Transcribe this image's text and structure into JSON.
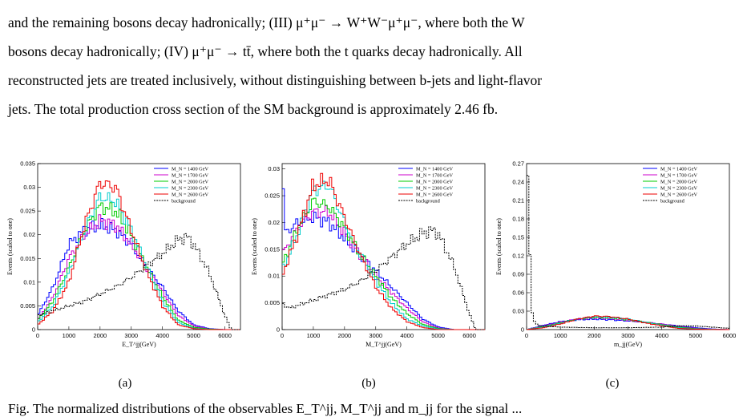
{
  "paragraph": {
    "lines": [
      "and the remaining bosons decay hadronically; (III) μ⁺μ⁻ → W⁺W⁻μ⁺μ⁻, where both the W",
      "bosons decay hadronically; (IV) μ⁺μ⁻ → tt̄, where both the t quarks decay hadronically. All",
      "reconstructed jets are treated inclusively, without distinguishing between b-jets and light-flavor",
      "jets. The total production cross section of the SM background is approximately 2.46 fb."
    ]
  },
  "figures": [
    {
      "id": "a",
      "caption": "(a)",
      "chart_data": {
        "type": "line",
        "xlabel": "E_T^jj(GeV)",
        "ylabel": "Events (scaled to one)",
        "xlim": [
          0,
          6500
        ],
        "ylim": [
          0,
          0.035
        ],
        "xticks": [
          "0",
          "1000",
          "2000",
          "3000",
          "4000",
          "5000",
          "6000"
        ],
        "yticks": [
          "0",
          "0.005",
          "0.01",
          "0.015",
          "0.02",
          "0.025",
          "0.03",
          "0.035"
        ],
        "legend_position": "top-right",
        "series": [
          {
            "name": "M_N = 1400 GeV",
            "color": "#0000ff",
            "x": [
              0,
              500,
              1000,
              1500,
              2000,
              2500,
              3000,
              3500,
              4000,
              4500,
              5000,
              5500,
              6000
            ],
            "values": [
              0.003,
              0.009,
              0.018,
              0.021,
              0.022,
              0.021,
              0.018,
              0.013,
              0.009,
              0.004,
              0.001,
              0.0002,
              0
            ]
          },
          {
            "name": "M_N = 1700 GeV",
            "color": "#cc00cc",
            "x": [
              0,
              500,
              1000,
              1500,
              2000,
              2500,
              3000,
              3500,
              4000,
              4500,
              5000,
              5500,
              6000
            ],
            "values": [
              0.002,
              0.007,
              0.015,
              0.02,
              0.023,
              0.022,
              0.018,
              0.013,
              0.008,
              0.003,
              0.0008,
              0.0001,
              0
            ]
          },
          {
            "name": "M_N = 2000 GeV",
            "color": "#00cc00",
            "x": [
              0,
              500,
              1000,
              1500,
              2000,
              2500,
              3000,
              3500,
              4000,
              4500,
              5000,
              5500,
              6000
            ],
            "values": [
              0.002,
              0.006,
              0.013,
              0.021,
              0.026,
              0.025,
              0.02,
              0.013,
              0.007,
              0.002,
              0.0005,
              0.0001,
              0
            ]
          },
          {
            "name": "M_N = 2300 GeV",
            "color": "#00cccc",
            "x": [
              0,
              500,
              1000,
              1500,
              2000,
              2500,
              3000,
              3500,
              4000,
              4500,
              5000,
              5500,
              6000
            ],
            "values": [
              0.0015,
              0.005,
              0.012,
              0.021,
              0.028,
              0.027,
              0.021,
              0.013,
              0.006,
              0.0015,
              0.0003,
              0,
              0
            ]
          },
          {
            "name": "M_N = 2600 GeV",
            "color": "#ee0000",
            "x": [
              0,
              500,
              1000,
              1500,
              2000,
              2500,
              3000,
              3500,
              4000,
              4500,
              5000,
              5500,
              6000
            ],
            "values": [
              0.001,
              0.004,
              0.01,
              0.022,
              0.031,
              0.03,
              0.021,
              0.012,
              0.005,
              0.001,
              0.0002,
              0,
              0
            ]
          },
          {
            "name": "background",
            "color": "#000000",
            "dashed": true,
            "x": [
              0,
              500,
              1000,
              1500,
              2000,
              2500,
              3000,
              3500,
              4000,
              4500,
              4800,
              5000,
              5500,
              6000,
              6200
            ],
            "values": [
              0.003,
              0.004,
              0.005,
              0.006,
              0.0075,
              0.009,
              0.011,
              0.0135,
              0.016,
              0.019,
              0.0195,
              0.018,
              0.012,
              0.003,
              0
            ]
          }
        ]
      }
    },
    {
      "id": "b",
      "caption": "(b)",
      "chart_data": {
        "type": "line",
        "xlabel": "M_T^jj(GeV)",
        "ylabel": "Events (scaled to one)",
        "xlim": [
          0,
          6500
        ],
        "ylim": [
          0,
          0.031
        ],
        "xticks": [
          "0",
          "1000",
          "2000",
          "3000",
          "4000",
          "5000",
          "6000"
        ],
        "yticks": [
          "0",
          "0.005",
          "0.01",
          "0.015",
          "0.02",
          "0.025",
          "0.03"
        ],
        "legend_position": "top-right",
        "series": [
          {
            "name": "M_N = 1400 GeV",
            "color": "#0000ff",
            "x": [
              0,
              100,
              500,
              1000,
              1500,
              2000,
              2500,
              3000,
              3500,
              4000,
              4500,
              5000,
              5500
            ],
            "values": [
              0.031,
              0.018,
              0.02,
              0.021,
              0.02,
              0.017,
              0.014,
              0.011,
              0.008,
              0.005,
              0.002,
              0.0005,
              0
            ]
          },
          {
            "name": "M_N = 1700 GeV",
            "color": "#cc00cc",
            "x": [
              0,
              500,
              1000,
              1500,
              2000,
              2500,
              3000,
              3500,
              4000,
              4500,
              5000,
              5500
            ],
            "values": [
              0.014,
              0.019,
              0.022,
              0.022,
              0.018,
              0.014,
              0.01,
              0.007,
              0.004,
              0.0015,
              0.0003,
              0
            ]
          },
          {
            "name": "M_N = 2000 GeV",
            "color": "#00cc00",
            "x": [
              0,
              500,
              1000,
              1500,
              2000,
              2500,
              3000,
              3500,
              4000,
              4500,
              5000,
              5500
            ],
            "values": [
              0.012,
              0.019,
              0.024,
              0.023,
              0.019,
              0.014,
              0.01,
              0.006,
              0.003,
              0.001,
              0.0002,
              0
            ]
          },
          {
            "name": "M_N = 2300 GeV",
            "color": "#00cccc",
            "x": [
              0,
              500,
              1000,
              1500,
              2000,
              2500,
              3000,
              3500,
              4000,
              4500,
              5000,
              5500
            ],
            "values": [
              0.011,
              0.018,
              0.026,
              0.027,
              0.02,
              0.014,
              0.009,
              0.005,
              0.002,
              0.0007,
              0.0001,
              0
            ]
          },
          {
            "name": "M_N = 2600 GeV",
            "color": "#ee0000",
            "x": [
              0,
              500,
              1000,
              1500,
              2000,
              2500,
              3000,
              3500,
              4000,
              4500,
              5000
            ],
            "values": [
              0.01,
              0.018,
              0.027,
              0.028,
              0.021,
              0.014,
              0.008,
              0.004,
              0.0015,
              0.0004,
              0
            ]
          },
          {
            "name": "background",
            "color": "#000000",
            "dashed": true,
            "x": [
              0,
              200,
              500,
              1000,
              1500,
              2000,
              2500,
              3000,
              3500,
              4000,
              4500,
              4800,
              5000,
              5500,
              6000,
              6200
            ],
            "values": [
              0.005,
              0.004,
              0.0045,
              0.0055,
              0.0065,
              0.0075,
              0.009,
              0.011,
              0.0135,
              0.016,
              0.018,
              0.0185,
              0.018,
              0.012,
              0.003,
              0
            ]
          }
        ]
      }
    },
    {
      "id": "c",
      "caption": "(c)",
      "chart_data": {
        "type": "line",
        "xlabel": "m_jj(GeV)",
        "ylabel": "Events (scaled to one)",
        "xlim": [
          0,
          6000
        ],
        "ylim": [
          0,
          0.27
        ],
        "xticks": [
          "0",
          "1000",
          "2000",
          "3000",
          "4000",
          "5000",
          "6000"
        ],
        "yticks": [
          "0",
          "0.03",
          "0.06",
          "0.09",
          "0.12",
          "0.15",
          "0.18",
          "0.21",
          "0.24",
          "0.27"
        ],
        "legend_position": "top-right",
        "series": [
          {
            "name": "M_N = 1400 GeV",
            "color": "#0000ff",
            "x": [
              0,
              500,
              1000,
              1500,
              2000,
              2500,
              3000,
              3500,
              4000,
              4500,
              5000,
              5500,
              6000
            ],
            "values": [
              0,
              0.007,
              0.013,
              0.016,
              0.017,
              0.016,
              0.014,
              0.012,
              0.009,
              0.006,
              0.003,
              0.001,
              0
            ]
          },
          {
            "name": "M_N = 1700 GeV",
            "color": "#cc00cc",
            "x": [
              0,
              500,
              1000,
              1500,
              2000,
              2500,
              3000,
              3500,
              4000,
              4500,
              5000,
              5500,
              6000
            ],
            "values": [
              0,
              0.006,
              0.012,
              0.017,
              0.019,
              0.018,
              0.015,
              0.012,
              0.009,
              0.005,
              0.002,
              0.0005,
              0
            ]
          },
          {
            "name": "M_N = 2000 GeV",
            "color": "#00cc00",
            "x": [
              0,
              500,
              1000,
              1500,
              2000,
              2500,
              3000,
              3500,
              4000,
              4500,
              5000,
              5500,
              6000
            ],
            "values": [
              0,
              0.005,
              0.011,
              0.017,
              0.02,
              0.019,
              0.016,
              0.012,
              0.008,
              0.004,
              0.0015,
              0.0003,
              0
            ]
          },
          {
            "name": "M_N = 2300 GeV",
            "color": "#00cccc",
            "x": [
              0,
              500,
              1000,
              1500,
              2000,
              2500,
              3000,
              3500,
              4000,
              4500,
              5000,
              5500,
              6000
            ],
            "values": [
              0,
              0.004,
              0.01,
              0.017,
              0.021,
              0.02,
              0.017,
              0.012,
              0.007,
              0.003,
              0.001,
              0.0002,
              0
            ]
          },
          {
            "name": "M_N = 2600 GeV",
            "color": "#ee0000",
            "x": [
              0,
              500,
              1000,
              1500,
              2000,
              2500,
              3000,
              3500,
              4000,
              4500,
              5000,
              5500,
              6000
            ],
            "values": [
              0,
              0.003,
              0.009,
              0.017,
              0.022,
              0.021,
              0.017,
              0.011,
              0.006,
              0.002,
              0.0007,
              0.0001,
              0
            ]
          },
          {
            "name": "background",
            "color": "#000000",
            "dashed": true,
            "x": [
              0,
              50,
              100,
              150,
              250,
              400,
              700,
              1000,
              2000,
              3000,
              4000,
              4500,
              5000,
              5500,
              6000
            ],
            "values": [
              0.26,
              0.24,
              0.13,
              0.03,
              0.01,
              0.006,
              0.005,
              0.004,
              0.003,
              0.003,
              0.004,
              0.006,
              0.006,
              0.004,
              0.002
            ]
          }
        ]
      }
    }
  ],
  "bottom_text": "Fig. The normalized distributions of the observables E_T^jj, M_T^jj and m_jj for the signal ..."
}
